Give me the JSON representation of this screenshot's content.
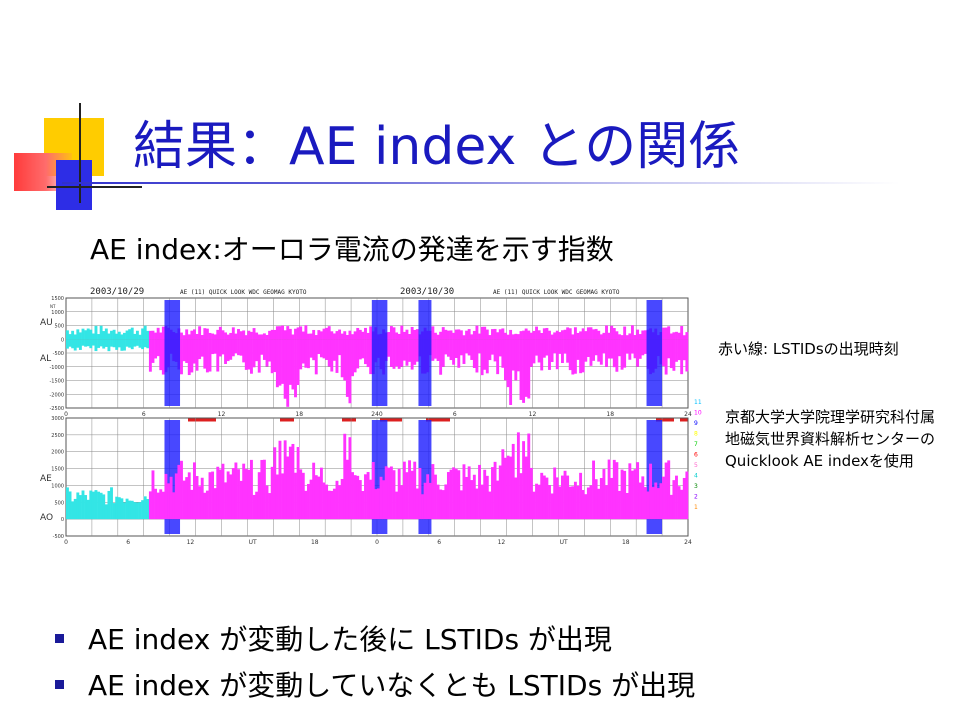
{
  "slide": {
    "title": "結果：AE index との関係",
    "subtitle": "AE index:オーロラ電流の発達を示す指数",
    "note_red_line": "赤い線: LSTIDsの出現時刻",
    "note_source": "京都大学大学院理学研究科付属地磁気世界資料解析センターのQuicklook AE indexを使用",
    "bullets": [
      "AE index が変動した後に LSTIDs が出現",
      "AE index が変動していなくとも LSTIDs が出現"
    ]
  },
  "plot": {
    "header_left": "2003/10/29",
    "header_right": "2003/10/30",
    "header_label_left": "AE (11)   QUICK LOOK  WDC GEOMAG KYOTO",
    "header_label_right": "AE (11)   QUICK LOOK  WDC GEOMAG KYOTO",
    "top_panel": {
      "y_axis_label_top": "AU",
      "y_axis_label_bottom": "AL",
      "y_ticks": [
        "1500",
        "1000",
        "500",
        "0",
        "-500",
        "-1000",
        "-1500",
        "-2000",
        "-2500"
      ],
      "unit": "NT"
    },
    "bottom_panel": {
      "y_axis_label_top": "AE",
      "y_axis_label_bottom": "AO",
      "y_ticks": [
        "3000",
        "2500",
        "2000",
        "1500",
        "1000",
        "500",
        "0",
        "-500"
      ]
    },
    "x_ticks_top": [
      "0",
      "6",
      "12",
      "18",
      "240",
      "6",
      "12",
      "18",
      "24"
    ],
    "x_ticks_bottom": [
      "0",
      "6",
      "12",
      "UT",
      "18",
      "0",
      "6",
      "12",
      "UT",
      "18",
      "24"
    ],
    "station_counts": [
      "11",
      "10",
      "9",
      "8",
      "7",
      "6",
      "5",
      "4",
      "3",
      "2",
      "1"
    ],
    "station_colors": [
      "#00bfff",
      "#ff00ff",
      "#0000ff",
      "#ffff00",
      "#00cc00",
      "#ff0000",
      "#ff66cc",
      "#00cccc",
      "#008800",
      "#8800ff",
      "#ff8800"
    ],
    "lstid_color": "#dd2020",
    "fill_colors": {
      "au": "#ff33ff",
      "al": "#ff33ff",
      "quiet": "#33e5e5",
      "ae": "#ff33ff",
      "dark": "#1a1aff"
    }
  }
}
